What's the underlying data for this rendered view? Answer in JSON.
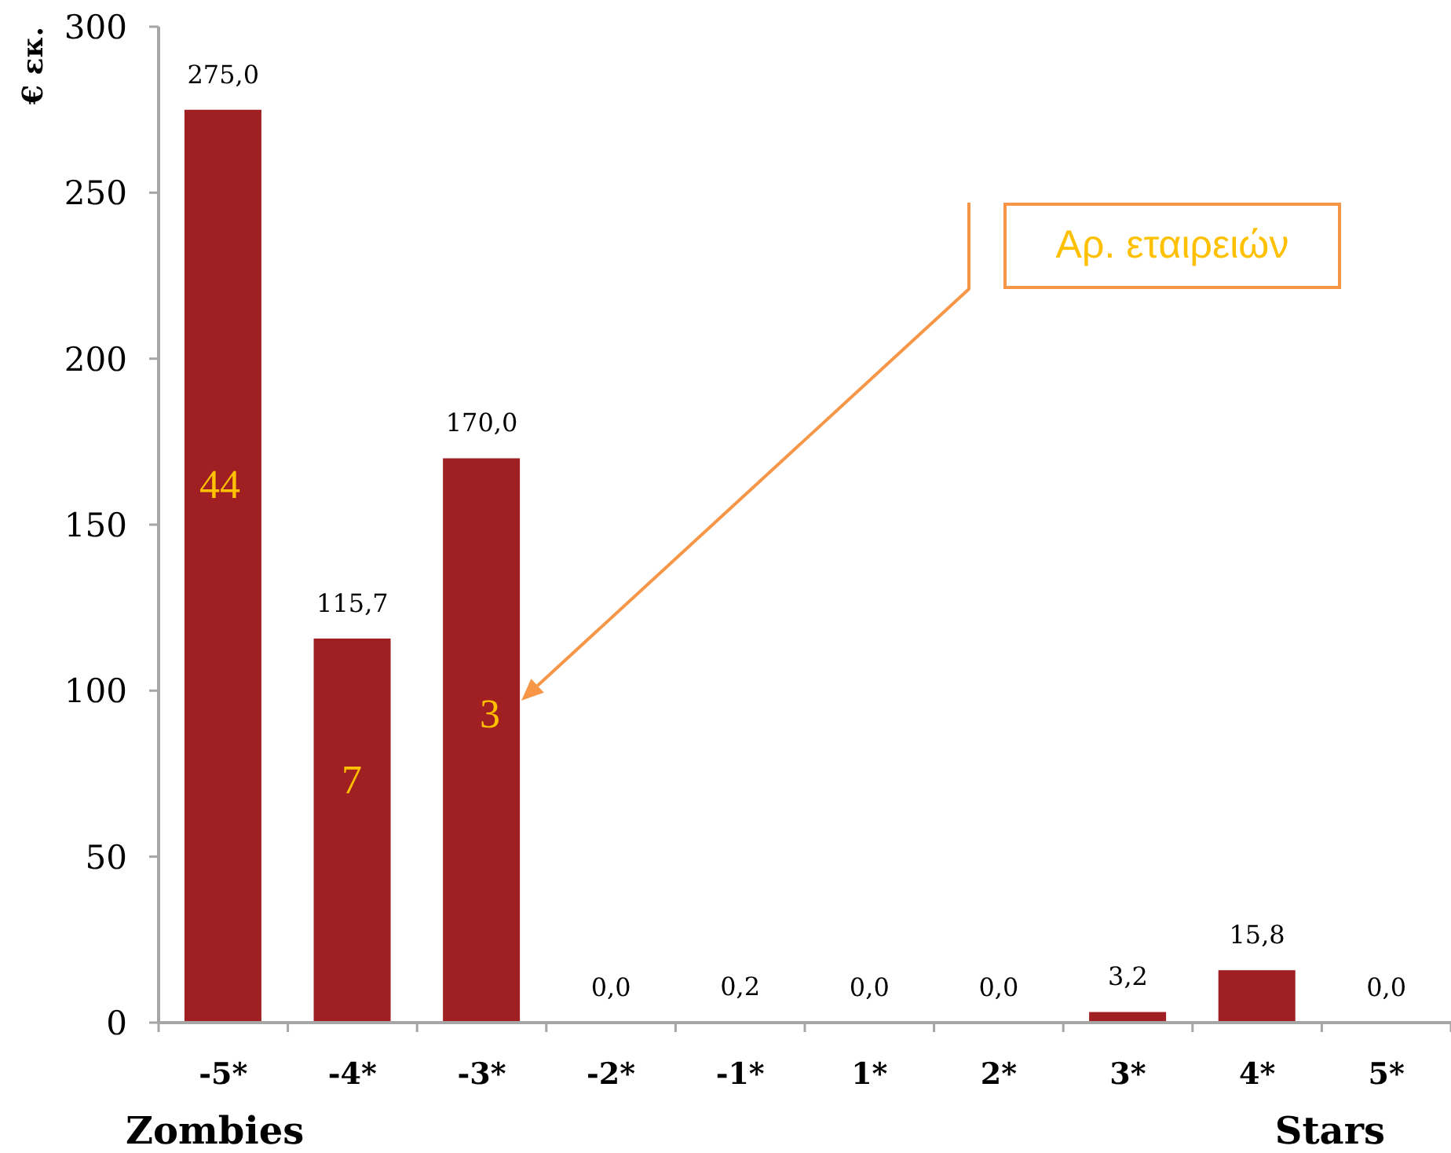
{
  "chart_data": {
    "type": "bar",
    "ylabel": "€ εκ.",
    "categories": [
      "-5*",
      "-4*",
      "-3*",
      "-2*",
      "-1*",
      "1*",
      "2*",
      "3*",
      "4*",
      "5*"
    ],
    "values": [
      275.0,
      115.7,
      170.0,
      0.0,
      0.2,
      0.0,
      0.0,
      3.2,
      15.8,
      0.0
    ],
    "color": "#a01f22",
    "value_labels": [
      "275,0",
      "115,7",
      "170,0",
      "0,0",
      "0,2",
      "0,0",
      "0,0",
      "3,2",
      "15,8",
      "0,0"
    ],
    "ylim": [
      0,
      300
    ],
    "yticks": [
      0,
      50,
      100,
      150,
      200,
      250,
      300
    ],
    "annotations": [
      "44",
      "7",
      "3",
      "Αρ. εταιρειών",
      "Zombies",
      "Stars"
    ]
  }
}
